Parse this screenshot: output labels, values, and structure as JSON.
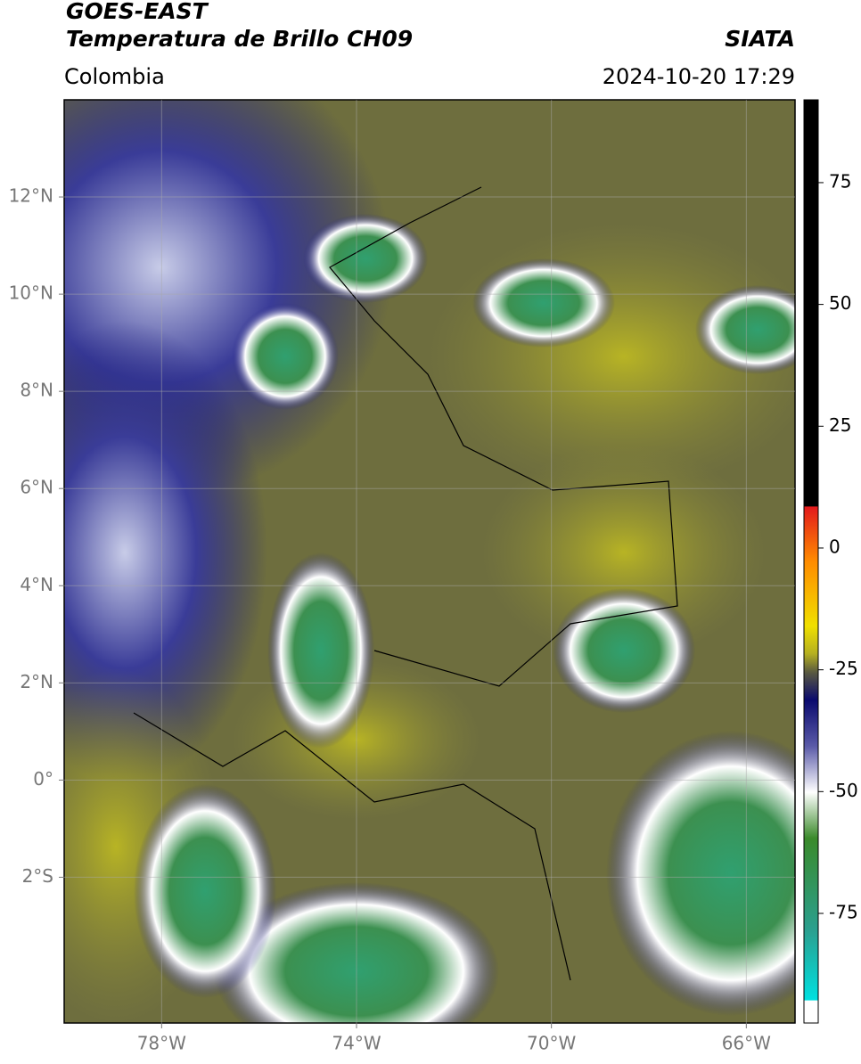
{
  "header": {
    "title_line1": "GOES-EAST",
    "title_line2": "Temperatura de Brillo CH09",
    "source": "SIATA",
    "region": "Colombia",
    "datetime": "2024-10-20 17:29"
  },
  "map": {
    "xlim": [
      -80,
      -65
    ],
    "ylim": [
      -5,
      14
    ],
    "xticks": [
      {
        "value": -78,
        "label": "78°W"
      },
      {
        "value": -74,
        "label": "74°W"
      },
      {
        "value": -70,
        "label": "70°W"
      },
      {
        "value": -66,
        "label": "66°W"
      }
    ],
    "yticks": [
      {
        "value": 12,
        "label": "12°N"
      },
      {
        "value": 10,
        "label": "10°N"
      },
      {
        "value": 8,
        "label": "8°N"
      },
      {
        "value": 6,
        "label": "6°N"
      },
      {
        "value": 4,
        "label": "4°N"
      },
      {
        "value": 2,
        "label": "2°N"
      },
      {
        "value": 0,
        "label": "0°"
      },
      {
        "value": -2,
        "label": "2°S"
      }
    ],
    "grid": true
  },
  "colorbar": {
    "range": [
      -97.5,
      92
    ],
    "ticks": [
      75,
      50,
      25,
      0,
      -25,
      -50,
      -75
    ]
  }
}
